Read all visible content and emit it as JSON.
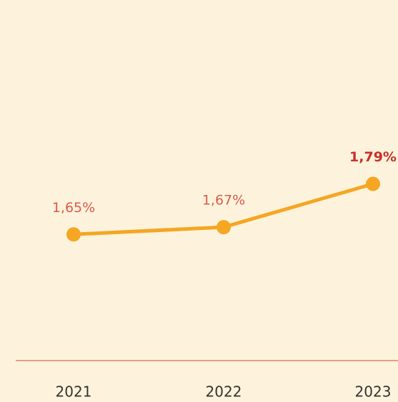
{
  "chart_data": {
    "type": "line",
    "categories": [
      "2021",
      "2022",
      "2023"
    ],
    "values": [
      1.65,
      1.67,
      1.79
    ],
    "value_labels": [
      "1,65%",
      "1,67%",
      "1,79%"
    ],
    "color": "#f5a623",
    "ylim": [
      1.3,
      2.3
    ]
  }
}
